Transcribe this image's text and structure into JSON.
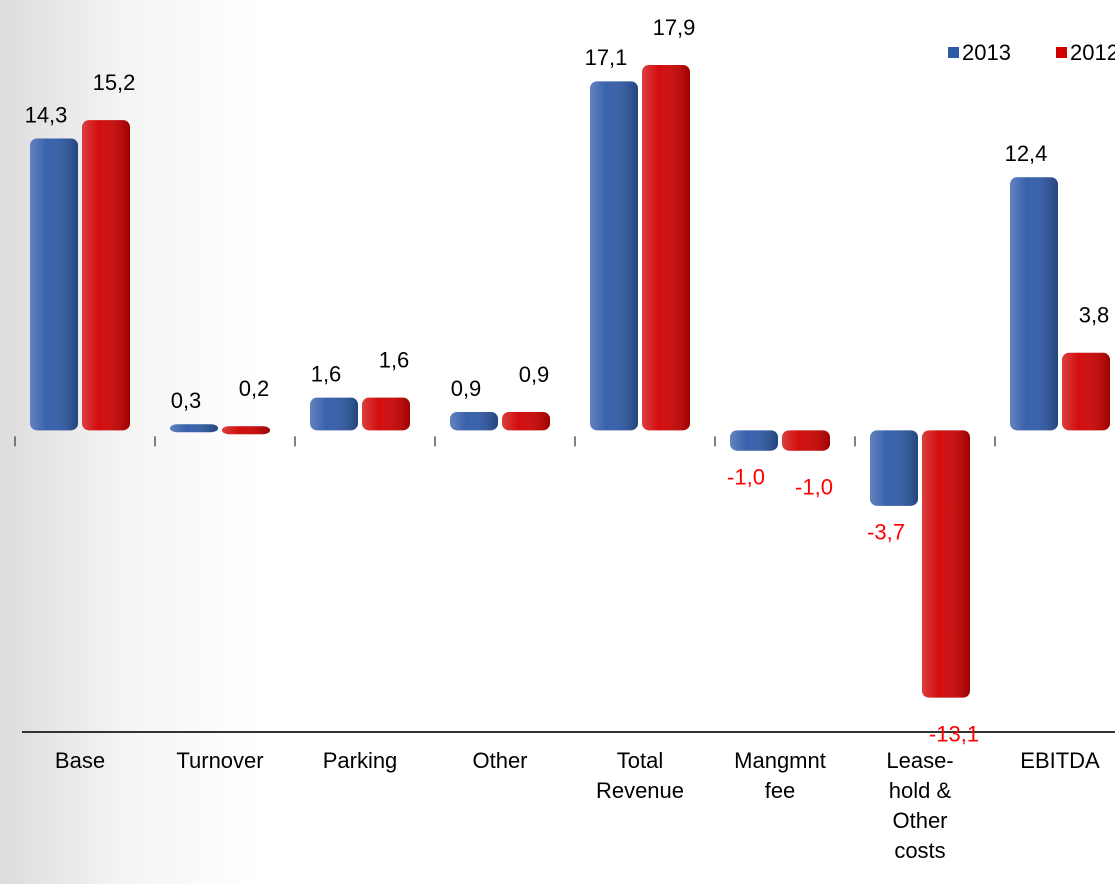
{
  "chart_data": {
    "type": "bar",
    "categories": [
      "Base",
      "Turnover",
      "Parking",
      "Other",
      "Total Revenue",
      "Mangmnt fee",
      "Lease-hold & Other costs",
      "EBITDA"
    ],
    "series": [
      {
        "name": "2013",
        "color": "#2e5aa8",
        "values": [
          14.3,
          0.3,
          1.6,
          0.9,
          17.1,
          -1.0,
          -3.7,
          12.4
        ],
        "value_labels": [
          "14,3",
          "0,3",
          "1,6",
          "0,9",
          "17,1",
          "-1,0",
          "-3,7",
          "12,4"
        ]
      },
      {
        "name": "2012",
        "color": "#d00000",
        "values": [
          15.2,
          0.2,
          1.6,
          0.9,
          17.9,
          -1.0,
          -13.1,
          3.8
        ],
        "value_labels": [
          "15,2",
          "0,2",
          "1,6",
          "0,9",
          "17,9",
          "-1,0",
          "-13,1",
          "3,8"
        ]
      }
    ],
    "ylim": [
      -14,
      18
    ],
    "legend": "top-right"
  }
}
